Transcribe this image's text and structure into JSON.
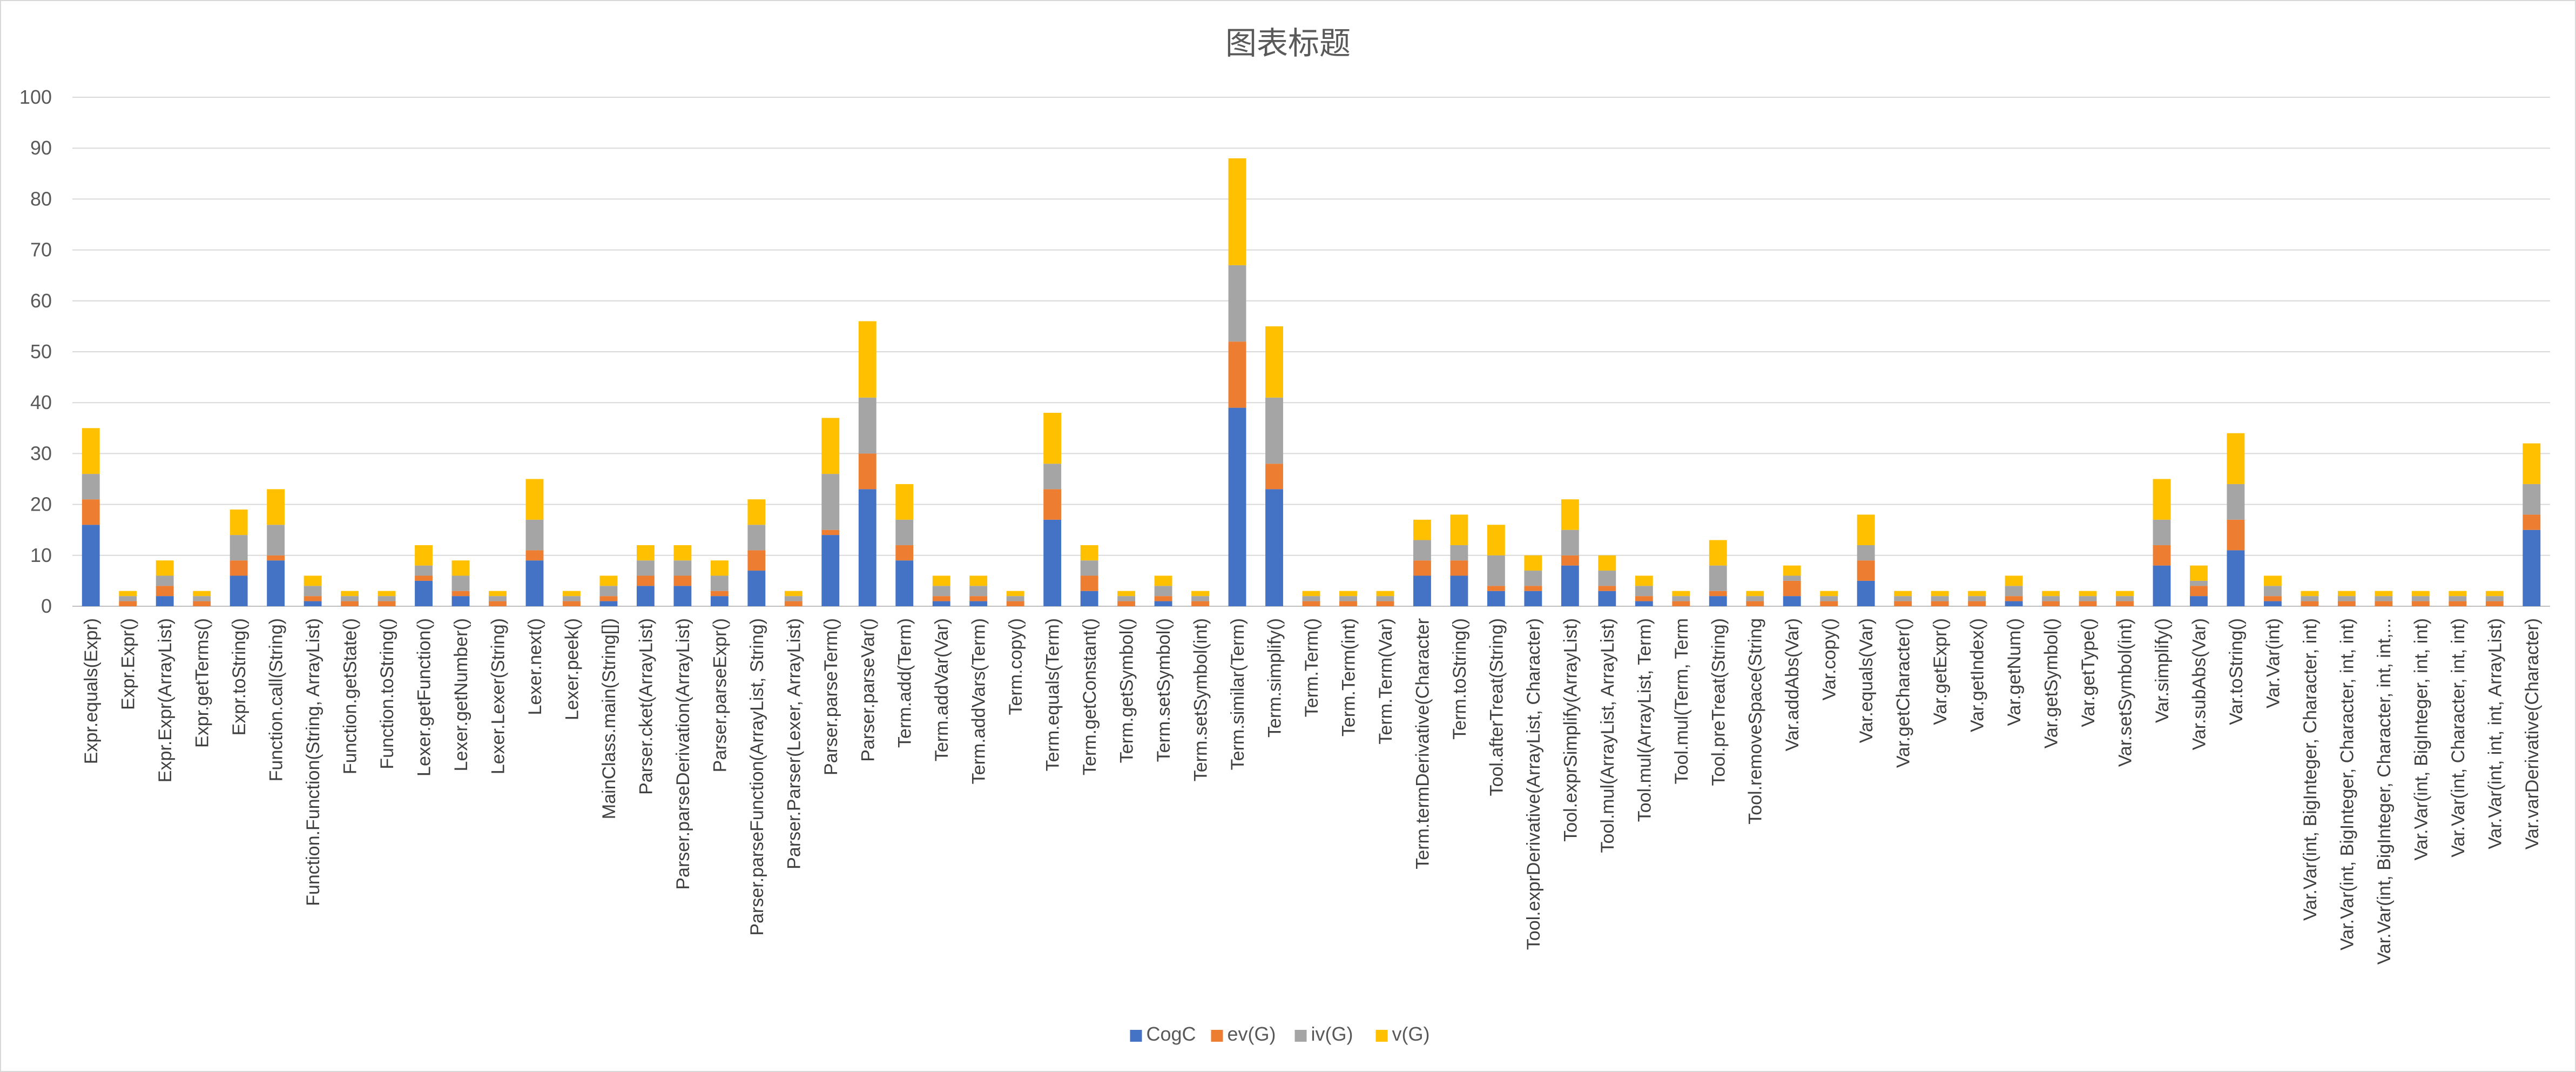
{
  "chart_data": {
    "type": "bar",
    "stacked": true,
    "title": "图表标题",
    "xlabel": "",
    "ylabel": "",
    "ylim": [
      0,
      100
    ],
    "yticks": [
      0,
      10,
      20,
      30,
      40,
      50,
      60,
      70,
      80,
      90,
      100
    ],
    "grid": true,
    "legend_position": "bottom",
    "colors": [
      "#4472c4",
      "#ed7d31",
      "#a5a5a5",
      "#ffc000"
    ],
    "categories": [
      "Expr.equals(Expr)",
      "Expr.Expr()",
      "Expr.Expr(ArrayList)",
      "Expr.getTerms()",
      "Expr.toString()",
      "Function.call(String)",
      "Function.Function(String, ArrayList)",
      "Function.getState()",
      "Function.toString()",
      "Lexer.getFunction()",
      "Lexer.getNumber()",
      "Lexer.Lexer(String)",
      "Lexer.next()",
      "Lexer.peek()",
      "MainClass.main(String[])",
      "Parser.cket(ArrayList)",
      "Parser.parseDerivation(ArrayList)",
      "Parser.parseExpr()",
      "Parser.parseFunction(ArrayList, String)",
      "Parser.Parser(Lexer, ArrayList)",
      "Parser.parseTerm()",
      "Parser.parseVar()",
      "Term.add(Term)",
      "Term.addVar(Var)",
      "Term.addVars(Term)",
      "Term.copy()",
      "Term.equals(Term)",
      "Term.getConstant()",
      "Term.getSymbol()",
      "Term.setSymbol()",
      "Term.setSymbol(int)",
      "Term.similar(Term)",
      "Term.simplify()",
      "Term.Term()",
      "Term.Term(int)",
      "Term.Term(Var)",
      "Term.termDerivative(Character",
      "Term.toString()",
      "Tool.afterTreat(String)",
      "Tool.exprDerivative(ArrayList, Character)",
      "Tool.exprSimplify(ArrayList)",
      "Tool.mul(ArrayList, ArrayList)",
      "Tool.mul(ArrayList, Term)",
      "Tool.mul(Term, Term",
      "Tool.preTreat(String)",
      "Tool.removeSpace(String",
      "Var.addAbs(Var)",
      "Var.copy()",
      "Var.equals(Var)",
      "Var.getCharacter()",
      "Var.getExpr()",
      "Var.getIndex()",
      "Var.getNum()",
      "Var.getSymbol()",
      "Var.getType()",
      "Var.setSymbol(int)",
      "Var.simplify()",
      "Var.subAbs(Var)",
      "Var.toString()",
      "Var.Var(int)",
      "Var.Var(int, BigInteger, Character, int)",
      "Var.Var(int, BigInteger, Character, int, int)",
      "Var.Var(int, BigInteger, Character, int, int,...",
      "Var.Var(int, BigInteger, int, int)",
      "Var.Var(int, Character, int, int)",
      "Var.Var(int, int, int, ArrayList)",
      "Var.varDerivative(Character)"
    ],
    "series": [
      {
        "name": "CogC",
        "values": [
          16,
          0,
          2,
          0,
          6,
          9,
          1,
          0,
          0,
          5,
          2,
          0,
          9,
          0,
          1,
          4,
          4,
          2,
          7,
          0,
          14,
          23,
          9,
          1,
          1,
          0,
          17,
          3,
          0,
          1,
          0,
          39,
          23,
          0,
          0,
          0,
          6,
          6,
          3,
          3,
          8,
          3,
          1,
          0,
          2,
          0,
          2,
          0,
          5,
          0,
          0,
          0,
          1,
          0,
          0,
          0,
          8,
          2,
          11,
          1,
          0,
          0,
          0,
          0,
          0,
          0,
          15
        ]
      },
      {
        "name": "ev(G)",
        "values": [
          5,
          1,
          2,
          1,
          3,
          1,
          1,
          1,
          1,
          1,
          1,
          1,
          2,
          1,
          1,
          2,
          2,
          1,
          4,
          1,
          1,
          7,
          3,
          1,
          1,
          1,
          6,
          3,
          1,
          1,
          1,
          13,
          5,
          1,
          1,
          1,
          3,
          3,
          1,
          1,
          2,
          1,
          1,
          1,
          1,
          1,
          3,
          1,
          4,
          1,
          1,
          1,
          1,
          1,
          1,
          1,
          4,
          2,
          6,
          1,
          1,
          1,
          1,
          1,
          1,
          1,
          3
        ]
      },
      {
        "name": "iv(G)",
        "values": [
          5,
          1,
          2,
          1,
          5,
          6,
          2,
          1,
          1,
          2,
          3,
          1,
          6,
          1,
          2,
          3,
          3,
          3,
          5,
          1,
          11,
          11,
          5,
          2,
          2,
          1,
          5,
          3,
          1,
          2,
          1,
          15,
          13,
          1,
          1,
          1,
          4,
          3,
          6,
          3,
          5,
          3,
          2,
          1,
          5,
          1,
          1,
          1,
          3,
          1,
          1,
          1,
          2,
          1,
          1,
          1,
          5,
          1,
          7,
          2,
          1,
          1,
          1,
          1,
          1,
          1,
          6
        ]
      },
      {
        "name": "v(G)",
        "values": [
          9,
          1,
          3,
          1,
          5,
          7,
          2,
          1,
          1,
          4,
          3,
          1,
          8,
          1,
          2,
          3,
          3,
          3,
          5,
          1,
          11,
          15,
          7,
          2,
          2,
          1,
          10,
          3,
          1,
          2,
          1,
          21,
          14,
          1,
          1,
          1,
          4,
          6,
          6,
          3,
          6,
          3,
          2,
          1,
          5,
          1,
          2,
          1,
          6,
          1,
          1,
          1,
          2,
          1,
          1,
          1,
          8,
          3,
          10,
          2,
          1,
          1,
          1,
          1,
          1,
          1,
          8
        ]
      }
    ]
  }
}
